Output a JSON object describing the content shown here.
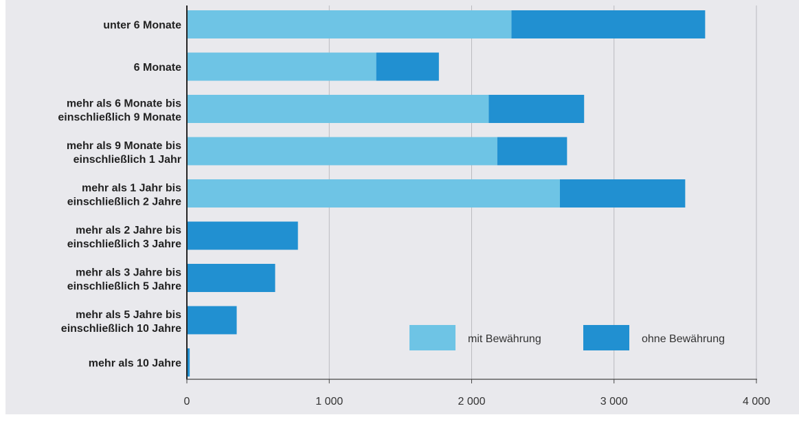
{
  "chart_data": {
    "type": "bar",
    "orientation": "horizontal",
    "stacked": true,
    "categories": [
      [
        "unter 6 Monate"
      ],
      [
        "6 Monate"
      ],
      [
        "mehr als 6 Monate bis",
        "einschließlich 9 Monate"
      ],
      [
        "mehr als 9 Monate bis",
        "einschließlich 1 Jahr"
      ],
      [
        "mehr als 1 Jahr bis",
        "einschließlich 2 Jahre"
      ],
      [
        "mehr als 2 Jahre bis",
        "einschließlich 3 Jahre"
      ],
      [
        "mehr als 3 Jahre bis",
        "einschließlich 5 Jahre"
      ],
      [
        "mehr als 5 Jahre bis",
        "einschließlich 10 Jahre"
      ],
      [
        "mehr als 10 Jahre"
      ]
    ],
    "series": [
      {
        "name": "mit Bewährung",
        "color": "#6ec4e5",
        "values": [
          2280,
          1330,
          2120,
          2180,
          2620,
          0,
          0,
          0,
          0
        ]
      },
      {
        "name": "ohne Bewährung",
        "color": "#2190d1",
        "values": [
          1360,
          440,
          670,
          490,
          880,
          780,
          620,
          350,
          20
        ]
      }
    ],
    "xlim": [
      0,
      4000
    ],
    "xticks": [
      0,
      1000,
      2000,
      3000,
      4000
    ],
    "xtick_labels": [
      "0",
      "1 000",
      "2 000",
      "3 000",
      "4 000"
    ],
    "grid": true,
    "legend_position": "bottom-right",
    "title": "",
    "xlabel": "",
    "ylabel": ""
  }
}
